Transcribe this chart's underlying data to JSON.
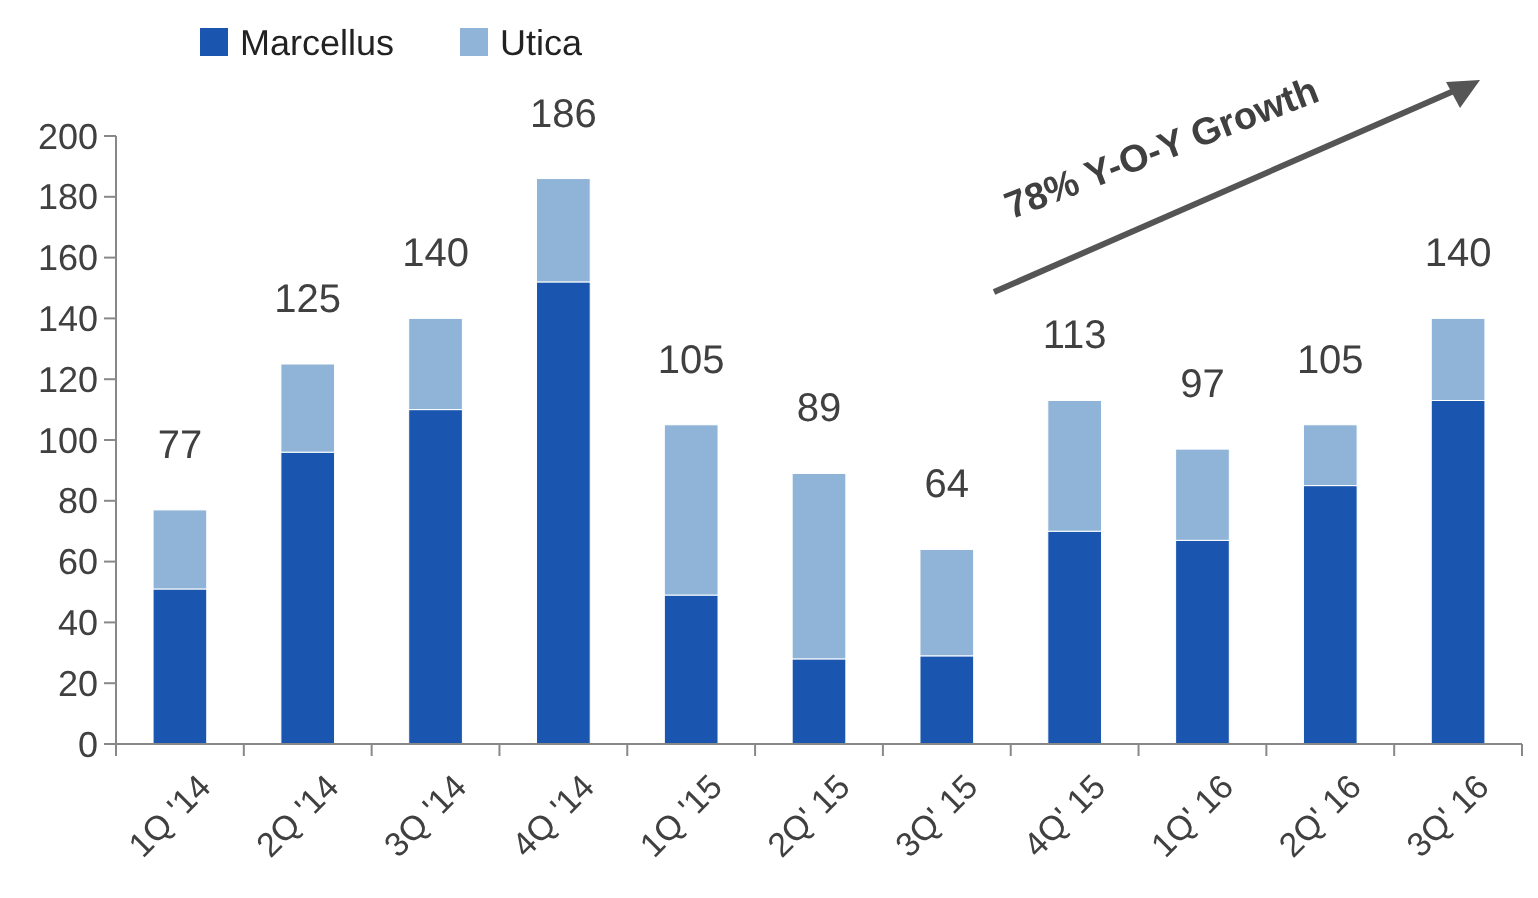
{
  "chart_data": {
    "type": "bar",
    "stacked": true,
    "categories": [
      "1Q '14",
      "2Q '14",
      "3Q '14",
      "4Q '14",
      "1Q '15",
      "2Q' 15",
      "3Q' 15",
      "4Q' 15",
      "1Q' 16",
      "2Q' 16",
      "3Q' 16"
    ],
    "series": [
      {
        "name": "Marcellus",
        "color": "#1a56b0",
        "values": [
          51,
          96,
          110,
          152,
          49,
          28,
          29,
          70,
          67,
          85,
          113
        ]
      },
      {
        "name": "Utica",
        "color": "#8fb4d8",
        "values": [
          26,
          29,
          30,
          34,
          56,
          61,
          35,
          43,
          30,
          20,
          27
        ]
      }
    ],
    "totals": [
      "77",
      "125",
      "140",
      "186",
      "105",
      "89",
      "64",
      "113",
      "97",
      "105",
      "140"
    ],
    "ylim": [
      0,
      200
    ],
    "yticks": [
      0,
      20,
      40,
      60,
      80,
      100,
      120,
      140,
      160,
      180,
      200
    ],
    "grid": false,
    "legend": "top left",
    "annotations": [
      "78% Y-O-Y Growth"
    ]
  }
}
